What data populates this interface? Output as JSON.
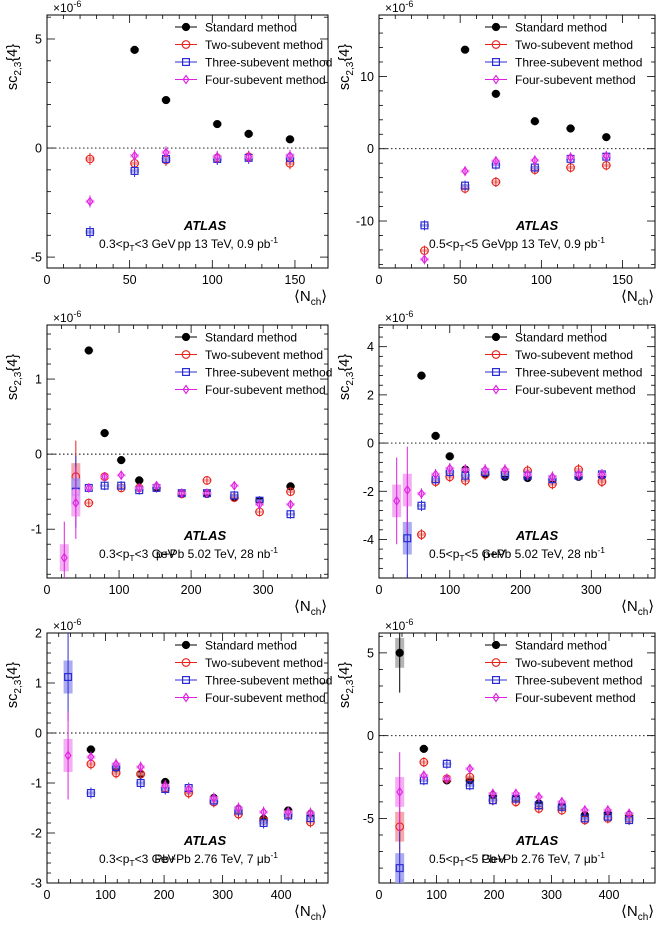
{
  "figure": {
    "legend_entries": [
      {
        "label": "Standard method",
        "marker": "circle-filled",
        "color": "#000000"
      },
      {
        "label": "Two-subevent method",
        "marker": "circle-open",
        "color": "#e8231c"
      },
      {
        "label": "Three-subevent method",
        "marker": "square-open",
        "color": "#2b2bd6"
      },
      {
        "label": "Four-subevent method",
        "marker": "diamond-open",
        "color": "#e020e0"
      }
    ],
    "systematic_colors": {
      "Standard method": "#a8a8a8",
      "Two-subevent method": "#f29b9b",
      "Three-subevent method": "#9e9ef0",
      "Four-subevent method": "#f2a0f2"
    },
    "experiment_label": "ATLAS",
    "exponent_label": "×10",
    "exponent_power": "-6",
    "ylabel_main": "sc",
    "ylabel_sub": "2,3",
    "ylabel_tail": "{4}",
    "xlabel_main": "⟨N",
    "xlabel_sub": "ch",
    "xlabel_tail": "⟩"
  },
  "chart_data": [
    {
      "type": "scatter",
      "panel": "pp 13 TeV, 0.3-3 GeV",
      "pt_label": "0.3<p",
      "pt_sub": "T",
      "pt_tail": "<3 GeV",
      "system_label": "pp 13 TeV, 0.9 pb",
      "system_sup": "-1",
      "xlim": [
        0,
        170
      ],
      "ylim": [
        -5.5,
        6.1
      ],
      "xticks": [
        0,
        50,
        100,
        150
      ],
      "yticks": [
        -5,
        0,
        5
      ],
      "series": [
        {
          "name": "Standard method",
          "x": [
            53,
            72,
            103,
            122,
            147
          ],
          "y": [
            4.5,
            2.2,
            1.1,
            0.65,
            0.4
          ]
        },
        {
          "name": "Two-subevent method",
          "x": [
            26,
            53,
            72,
            103,
            122,
            147
          ],
          "y": [
            -0.5,
            -0.7,
            -0.55,
            -0.45,
            -0.4,
            -0.7
          ]
        },
        {
          "name": "Three-subevent method",
          "x": [
            26,
            53,
            72,
            103,
            122,
            147
          ],
          "y": [
            -3.85,
            -1.05,
            -0.5,
            -0.5,
            -0.45,
            -0.45
          ]
        },
        {
          "name": "Four-subevent method",
          "x": [
            26,
            53,
            72,
            103,
            122,
            147
          ],
          "y": [
            -2.45,
            -0.35,
            -0.2,
            -0.4,
            -0.4,
            -0.35
          ]
        }
      ]
    },
    {
      "type": "scatter",
      "panel": "pp 13 TeV, 0.5-5 GeV",
      "pt_label": "0.5<p",
      "pt_sub": "T",
      "pt_tail": "<5 GeV",
      "system_label": "pp 13 TeV, 0.9 pb",
      "system_sup": "-1",
      "xlim": [
        0,
        170
      ],
      "ylim": [
        -16.5,
        18.5
      ],
      "xticks": [
        0,
        50,
        100,
        150
      ],
      "yticks": [
        -10,
        0,
        10
      ],
      "series": [
        {
          "name": "Standard method",
          "x": [
            53,
            72,
            96,
            118,
            140
          ],
          "y": [
            13.7,
            7.6,
            3.8,
            2.8,
            1.6
          ]
        },
        {
          "name": "Two-subevent method",
          "x": [
            28,
            53,
            72,
            96,
            118,
            140
          ],
          "y": [
            -14.1,
            -5.5,
            -4.6,
            -2.9,
            -2.6,
            -2.3
          ]
        },
        {
          "name": "Three-subevent method",
          "x": [
            28,
            53,
            72,
            96,
            118,
            140
          ],
          "y": [
            -10.6,
            -5.1,
            -2.2,
            -2.6,
            -1.4,
            -1.1
          ]
        },
        {
          "name": "Four-subevent method",
          "x": [
            28,
            53,
            72,
            96,
            118,
            140
          ],
          "y": [
            -15.3,
            -3.1,
            -1.7,
            -1.6,
            -1.2,
            -1.0
          ]
        }
      ]
    },
    {
      "type": "scatter",
      "panel": "p+Pb 5.02 TeV, 0.3-3 GeV",
      "pt_label": "0.3<p",
      "pt_sub": "T",
      "pt_tail": "<3 GeV",
      "system_label": "p+Pb 5.02 TeV, 28 nb",
      "system_sup": "-1",
      "xlim": [
        0,
        390
      ],
      "ylim": [
        -1.65,
        1.72
      ],
      "xticks": [
        0,
        100,
        200,
        300
      ],
      "yticks": [
        -1,
        0,
        1
      ],
      "series": [
        {
          "name": "Standard method",
          "x": [
            58,
            80,
            103,
            128,
            152,
            187,
            222,
            260,
            295,
            338
          ],
          "y": [
            1.38,
            0.28,
            -0.08,
            -0.35,
            -0.45,
            -0.53,
            -0.53,
            -0.58,
            -0.62,
            -0.43
          ]
        },
        {
          "name": "Two-subevent method",
          "x": [
            40,
            58,
            80,
            103,
            128,
            152,
            187,
            222,
            260,
            295,
            338
          ],
          "y": [
            -0.3,
            -0.65,
            -0.3,
            -0.45,
            -0.45,
            -0.45,
            -0.53,
            -0.35,
            -0.58,
            -0.77,
            -0.5
          ]
        },
        {
          "name": "Three-subevent method",
          "x": [
            40,
            58,
            80,
            103,
            128,
            152,
            187,
            222,
            260,
            295,
            338
          ],
          "y": [
            -0.5,
            -0.45,
            -0.42,
            -0.42,
            -0.48,
            -0.45,
            -0.52,
            -0.52,
            -0.55,
            -0.62,
            -0.8
          ]
        },
        {
          "name": "Four-subevent method",
          "x": [
            24,
            40,
            58,
            80,
            103,
            128,
            152,
            187,
            222,
            260,
            295,
            338
          ],
          "y": [
            -1.38,
            -0.65,
            -0.45,
            -0.3,
            -0.28,
            -0.45,
            -0.42,
            -0.52,
            -0.52,
            -0.42,
            -0.67,
            -0.67
          ]
        }
      ]
    },
    {
      "type": "scatter",
      "panel": "p+Pb 5.02 TeV, 0.5-5 GeV",
      "pt_label": "0.5<p",
      "pt_sub": "T",
      "pt_tail": "<5 GeV",
      "system_label": "p+Pb 5.02 TeV, 28 nb",
      "system_sup": "-1",
      "xlim": [
        0,
        390
      ],
      "ylim": [
        -5.6,
        4.9
      ],
      "xticks": [
        0,
        100,
        200,
        300
      ],
      "yticks": [
        -4,
        -2,
        0,
        2,
        4
      ],
      "series": [
        {
          "name": "Standard method",
          "x": [
            60,
            80,
            100,
            122,
            150,
            178,
            210,
            245,
            282,
            315
          ],
          "y": [
            2.8,
            0.3,
            -0.55,
            -1.1,
            -1.3,
            -1.4,
            -1.45,
            -1.5,
            -1.4,
            -1.35
          ]
        },
        {
          "name": "Two-subevent method",
          "x": [
            60,
            80,
            100,
            122,
            150,
            178,
            210,
            245,
            282,
            315
          ],
          "y": [
            -3.8,
            -1.6,
            -1.4,
            -1.55,
            -1.3,
            -1.2,
            -1.15,
            -1.7,
            -1.1,
            -1.6
          ]
        },
        {
          "name": "Three-subevent method",
          "x": [
            40,
            60,
            80,
            100,
            122,
            150,
            178,
            210,
            245,
            282,
            315
          ],
          "y": [
            -3.95,
            -2.6,
            -1.5,
            -1.2,
            -1.35,
            -1.2,
            -1.3,
            -1.35,
            -1.5,
            -1.35,
            -1.3
          ]
        },
        {
          "name": "Four-subevent method",
          "x": [
            25,
            40,
            60,
            80,
            100,
            122,
            150,
            178,
            210,
            245,
            282,
            315
          ],
          "y": [
            -2.4,
            -1.95,
            -2.1,
            -1.3,
            -1.05,
            -1.1,
            -1.1,
            -1.1,
            -1.3,
            -1.4,
            -1.3,
            -1.3
          ]
        }
      ]
    },
    {
      "type": "scatter",
      "panel": "Pb+Pb 2.76 TeV, 0.3-3 GeV",
      "pt_label": "0.3<p",
      "pt_sub": "T",
      "pt_tail": "<3 GeV",
      "system_label": "Pb+Pb 2.76 TeV, 7 μb",
      "system_sup": "-1",
      "xlim": [
        0,
        480
      ],
      "ylim": [
        -3,
        2
      ],
      "xticks": [
        0,
        100,
        200,
        300,
        400
      ],
      "yticks": [
        -3,
        -2,
        -1,
        0,
        1,
        2
      ],
      "series": [
        {
          "name": "Standard method",
          "x": [
            75,
            118,
            160,
            202,
            242,
            285,
            327,
            370,
            412,
            450
          ],
          "y": [
            -0.33,
            -0.7,
            -0.83,
            -0.98,
            -1.15,
            -1.3,
            -1.52,
            -1.72,
            -1.55,
            -1.62
          ]
        },
        {
          "name": "Two-subevent method",
          "x": [
            75,
            118,
            160,
            202,
            242,
            285,
            327,
            370,
            412,
            450
          ],
          "y": [
            -0.62,
            -0.8,
            -0.82,
            -1.1,
            -1.2,
            -1.38,
            -1.62,
            -1.75,
            -1.62,
            -1.78
          ]
        },
        {
          "name": "Three-subevent method",
          "x": [
            36,
            75,
            118,
            160,
            202,
            242,
            285,
            327,
            370,
            412,
            450
          ],
          "y": [
            1.12,
            -1.2,
            -0.68,
            -1.0,
            -1.12,
            -1.1,
            -1.35,
            -1.55,
            -1.8,
            -1.65,
            -1.7
          ]
        },
        {
          "name": "Four-subevent method",
          "x": [
            36,
            75,
            118,
            160,
            202,
            242,
            285,
            327,
            370,
            412,
            450
          ],
          "y": [
            -0.45,
            -0.48,
            -0.62,
            -0.68,
            -1.05,
            -1.12,
            -1.3,
            -1.5,
            -1.58,
            -1.58,
            -1.6
          ]
        }
      ]
    },
    {
      "type": "scatter",
      "panel": "Pb+Pb 2.76 TeV, 0.5-5 GeV",
      "pt_label": "0.5<p",
      "pt_sub": "T",
      "pt_tail": "<5 GeV",
      "system_label": "Pb+Pb 2.76 TeV, 7 μb",
      "system_sup": "-1",
      "xlim": [
        0,
        480
      ],
      "ylim": [
        -8.9,
        6.2
      ],
      "xticks": [
        0,
        100,
        200,
        300,
        400
      ],
      "yticks": [
        -5,
        0,
        5
      ],
      "series": [
        {
          "name": "Standard method",
          "x": [
            36,
            78,
            118,
            158,
            198,
            238,
            278,
            318,
            358,
            398,
            435
          ],
          "y": [
            5.0,
            -0.8,
            -2.7,
            -2.7,
            -3.6,
            -3.8,
            -4.1,
            -4.3,
            -4.8,
            -4.7,
            -4.8
          ]
        },
        {
          "name": "Two-subevent method",
          "x": [
            36,
            78,
            118,
            158,
            198,
            238,
            278,
            318,
            358,
            398,
            435
          ],
          "y": [
            -5.5,
            -1.6,
            -2.6,
            -2.5,
            -3.9,
            -4.0,
            -4.4,
            -4.5,
            -5.1,
            -5.0,
            -5.0
          ]
        },
        {
          "name": "Three-subevent method",
          "x": [
            36,
            78,
            118,
            158,
            198,
            238,
            278,
            318,
            358,
            398,
            435
          ],
          "y": [
            -8.0,
            -2.7,
            -1.7,
            -3.0,
            -3.9,
            -3.8,
            -4.2,
            -4.3,
            -5.0,
            -4.9,
            -5.1
          ]
        },
        {
          "name": "Four-subevent method",
          "x": [
            36,
            78,
            118,
            158,
            198,
            238,
            278,
            318,
            358,
            398,
            435
          ],
          "y": [
            -3.4,
            -2.4,
            -2.6,
            -2.0,
            -3.5,
            -3.5,
            -3.7,
            -4.0,
            -4.5,
            -4.5,
            -4.7
          ]
        }
      ]
    }
  ]
}
